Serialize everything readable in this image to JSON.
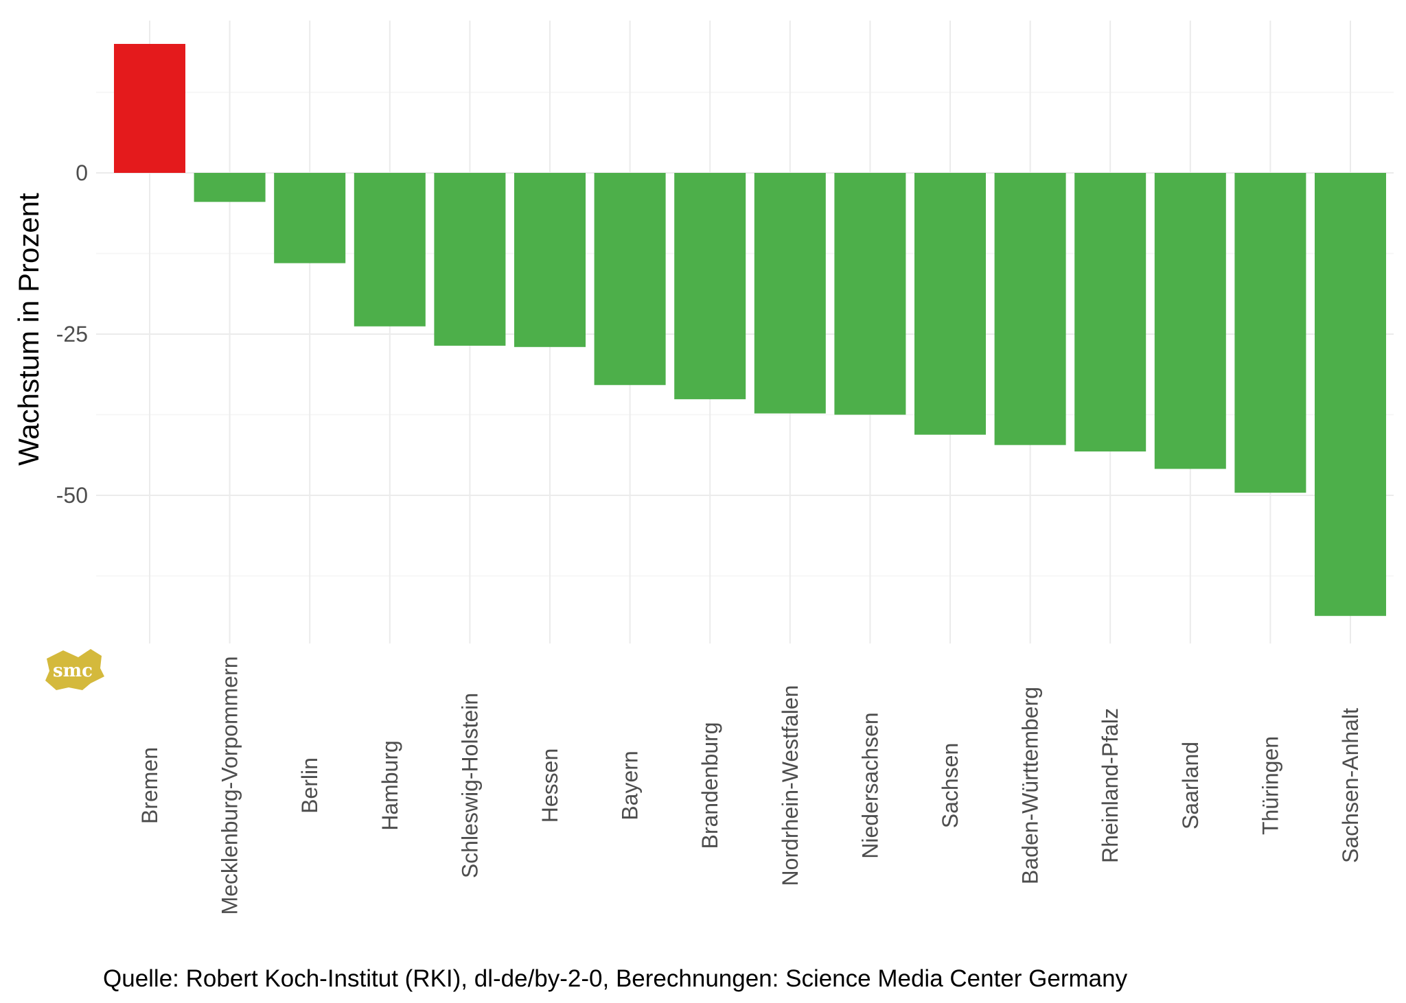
{
  "chart_data": {
    "type": "bar",
    "ylabel": "Wachstum in Prozent",
    "xlabel": "",
    "ylim": [
      -72,
      20
    ],
    "yticks": [
      0,
      -25,
      -50
    ],
    "ytick_labels": [
      "0",
      "-25",
      "-50"
    ],
    "grid": true,
    "legend": "none",
    "categories": [
      "Bremen",
      "Mecklenburg-Vorpommern",
      "Berlin",
      "Hamburg",
      "Schleswig-Holstein",
      "Hessen",
      "Bayern",
      "Brandenburg",
      "Nordrhein-Westfalen",
      "Niedersachsen",
      "Sachsen",
      "Baden-Württemberg",
      "Rheinland-Pfalz",
      "Saarland",
      "Thüringen",
      "Sachsen-Anhalt"
    ],
    "values": [
      20,
      -4.5,
      -14,
      -23.8,
      -26.8,
      -27,
      -32.9,
      -35.1,
      -37.3,
      -37.5,
      -40.6,
      -42.2,
      -43.2,
      -45.9,
      -49.6,
      -68.7
    ],
    "colors": {
      "positive": "#e41a1c",
      "negative": "#4daf4a",
      "grid_major": "#ebebeb",
      "grid_minor": "#f5f5f5"
    },
    "caption": "Quelle: Robert Koch-Institut (RKI), dl-de/by-2-0, Berechnungen: Science Media Center Germany"
  },
  "logo": {
    "text": "smc",
    "color": "#d4b93c"
  }
}
